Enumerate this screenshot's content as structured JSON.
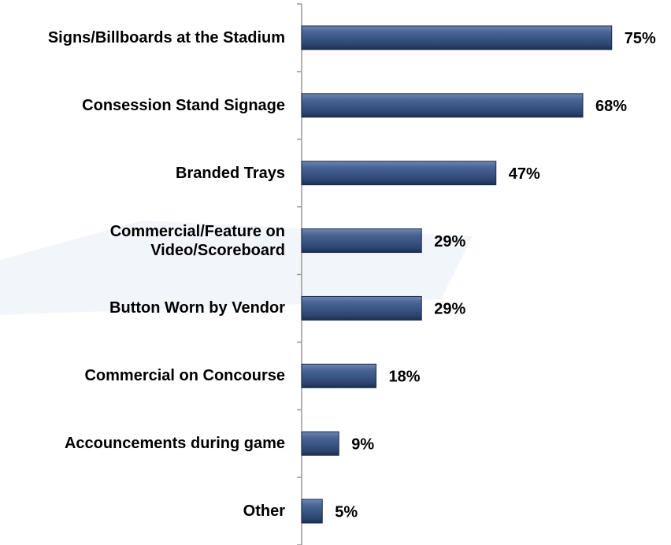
{
  "chart_data": {
    "type": "bar",
    "orientation": "horizontal",
    "categories": [
      "Signs/Billboards at the Stadium",
      "Consession Stand Signage",
      "Branded Trays",
      "Commercial/Feature on Video/Scoreboard",
      "Button Worn by Vendor",
      "Commercial on Concourse",
      "Accouncements during game",
      "Other"
    ],
    "values": [
      75,
      68,
      47,
      29,
      29,
      18,
      9,
      5
    ],
    "value_labels": [
      "75%",
      "68%",
      "47%",
      "29%",
      "29%",
      "18%",
      "9%",
      "5%"
    ],
    "color": "#34507f"
  }
}
